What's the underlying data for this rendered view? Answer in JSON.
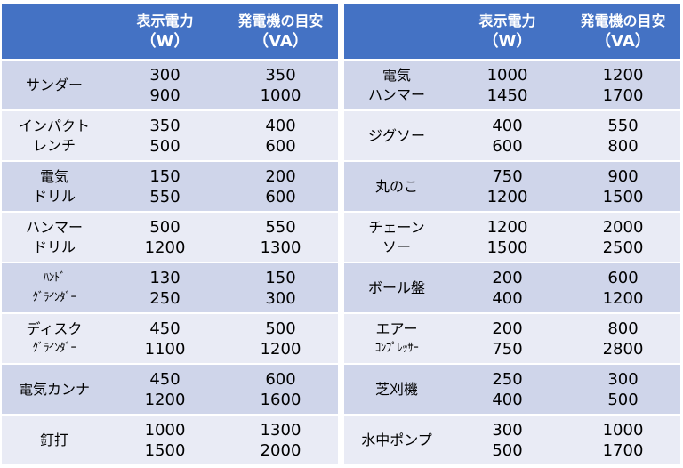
{
  "header": {
    "col_tool": "",
    "col_watt": "表示電力",
    "col_watt_unit": "（W）",
    "col_va": "発電機の目安",
    "col_va_unit": "（VA）"
  },
  "colors": {
    "header_bg": "#4472C4",
    "row_odd": "#CFD5EA",
    "row_even": "#E9EBF5"
  },
  "left_rows": [
    {
      "tool": [
        "サンダー"
      ],
      "watt": [
        "300",
        "900"
      ],
      "va": [
        "350",
        "1000"
      ]
    },
    {
      "tool": [
        "インパクト",
        "レンチ"
      ],
      "watt": [
        "350",
        "500"
      ],
      "va": [
        "400",
        "600"
      ]
    },
    {
      "tool": [
        "電気",
        "ドリル"
      ],
      "watt": [
        "150",
        "550"
      ],
      "va": [
        "200",
        "600"
      ]
    },
    {
      "tool": [
        "ハンマー",
        "ドリル"
      ],
      "watt": [
        "500",
        "1200"
      ],
      "va": [
        "550",
        "1300"
      ]
    },
    {
      "tool": [
        "ﾊﾝﾄﾞ",
        "ｸﾞﾗｲﾝﾀﾞｰ"
      ],
      "watt": [
        "130",
        "250"
      ],
      "va": [
        "150",
        "300"
      ]
    },
    {
      "tool": [
        "ディスク",
        "ｸﾞﾗｲﾝﾀﾞｰ"
      ],
      "watt": [
        "450",
        "1100"
      ],
      "va": [
        "500",
        "1200"
      ]
    },
    {
      "tool": [
        "電気カンナ"
      ],
      "watt": [
        "450",
        "1200"
      ],
      "va": [
        "600",
        "1600"
      ]
    },
    {
      "tool": [
        "釘打"
      ],
      "watt": [
        "1000",
        "1500"
      ],
      "va": [
        "1300",
        "2000"
      ]
    }
  ],
  "right_rows": [
    {
      "tool": [
        "電気",
        "ハンマー"
      ],
      "watt": [
        "1000",
        "1450"
      ],
      "va": [
        "1200",
        "1700"
      ]
    },
    {
      "tool": [
        "ジグソー"
      ],
      "watt": [
        "400",
        "600"
      ],
      "va": [
        "550",
        "800"
      ]
    },
    {
      "tool": [
        "丸のこ"
      ],
      "watt": [
        "750",
        "1200"
      ],
      "va": [
        "900",
        "1500"
      ]
    },
    {
      "tool": [
        "チェーン",
        "ソー"
      ],
      "watt": [
        "1200",
        "1500"
      ],
      "va": [
        "2000",
        "2500"
      ]
    },
    {
      "tool": [
        "ボール盤"
      ],
      "watt": [
        "200",
        "400"
      ],
      "va": [
        "600",
        "1200"
      ]
    },
    {
      "tool": [
        "エアー",
        "ｺﾝﾌﾟﾚｯｻｰ"
      ],
      "watt": [
        "200",
        "750"
      ],
      "va": [
        "800",
        "2800"
      ]
    },
    {
      "tool": [
        "芝刈機"
      ],
      "watt": [
        "250",
        "400"
      ],
      "va": [
        "300",
        "500"
      ]
    },
    {
      "tool": [
        "水中ポンプ"
      ],
      "watt": [
        "300",
        "500"
      ],
      "va": [
        "1000",
        "1700"
      ]
    }
  ]
}
